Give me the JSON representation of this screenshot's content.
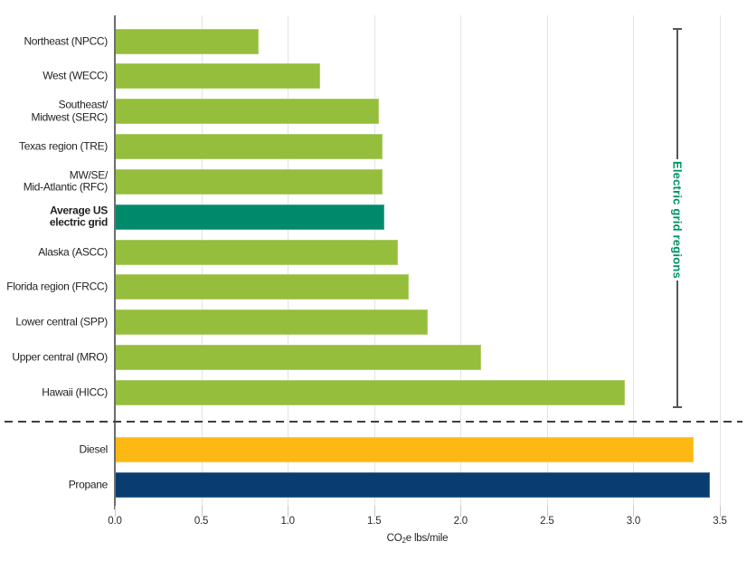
{
  "chart_data": {
    "type": "bar",
    "orientation": "horizontal",
    "xlabel": "CO₂e lbs/mile",
    "xlabel_parts": {
      "prefix": "CO",
      "sub": "2",
      "suffix": "e lbs/mile"
    },
    "xlim": [
      0,
      3.5
    ],
    "x_ticks": [
      "0.0",
      "0.5",
      "1.0",
      "1.5",
      "2.0",
      "2.5",
      "3.0",
      "3.5"
    ],
    "grid": true,
    "legend": "none",
    "bars": [
      {
        "label": "Northeast (NPCC)",
        "value": 0.83,
        "group": "electric",
        "color_key": "green"
      },
      {
        "label": "West (WECC)",
        "value": 1.19,
        "group": "electric",
        "color_key": "green"
      },
      {
        "label": "Southeast/\nMidwest (SERC)",
        "value": 1.53,
        "group": "electric",
        "color_key": "green"
      },
      {
        "label": "Texas region (TRE)",
        "value": 1.55,
        "group": "electric",
        "color_key": "green"
      },
      {
        "label": "MW/SE/\nMid-Atlantic (RFC)",
        "value": 1.55,
        "group": "electric",
        "color_key": "green"
      },
      {
        "label": "Average US\nelectric grid",
        "value": 1.56,
        "group": "electric",
        "color_key": "teal",
        "bold": true
      },
      {
        "label": "Alaska (ASCC)",
        "value": 1.64,
        "group": "electric",
        "color_key": "green"
      },
      {
        "label": "Florida region (FRCC)",
        "value": 1.7,
        "group": "electric",
        "color_key": "green"
      },
      {
        "label": "Lower central (SPP)",
        "value": 1.81,
        "group": "electric",
        "color_key": "green"
      },
      {
        "label": "Upper central (MRO)",
        "value": 2.12,
        "group": "electric",
        "color_key": "green"
      },
      {
        "label": "Hawaii (HICC)",
        "value": 2.95,
        "group": "electric",
        "color_key": "green"
      },
      {
        "label": "Diesel",
        "value": 3.35,
        "group": "fuel",
        "color_key": "orange"
      },
      {
        "label": "Propane",
        "value": 3.44,
        "group": "fuel",
        "color_key": "navy"
      }
    ],
    "annotation": {
      "label": "Electric grid regions"
    }
  },
  "colors": {
    "green": "#94BE3B",
    "teal": "#008A6C",
    "orange": "#FDB813",
    "navy": "#093D70",
    "annotation_text": "#00935E",
    "gridline": "#E3E3E3",
    "axis_line": "#6D6E71",
    "tick": "#C9C9C9",
    "dashed_line": "#3F3F3F",
    "bracket": "#55565A",
    "label_text": "#231F20"
  }
}
